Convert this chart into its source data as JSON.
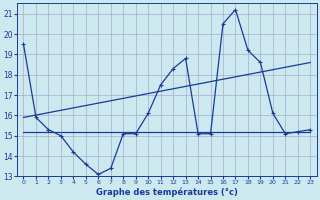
{
  "title": "Graphe des températures (°c)",
  "background_color": "#cce9f0",
  "grid_color": "#aaaacc",
  "line_color": "#1a3a9a",
  "ylim": [
    13,
    21.5
  ],
  "xlim": [
    -0.5,
    23.5
  ],
  "yticks": [
    13,
    14,
    15,
    16,
    17,
    18,
    19,
    20,
    21
  ],
  "xticks": [
    0,
    1,
    2,
    3,
    4,
    5,
    6,
    7,
    8,
    9,
    10,
    11,
    12,
    13,
    14,
    15,
    16,
    17,
    18,
    19,
    20,
    21,
    22,
    23
  ],
  "series1_x": [
    0,
    1,
    2,
    3,
    4,
    5,
    6,
    7,
    8,
    9,
    10,
    11,
    12,
    13,
    14,
    15,
    16,
    17,
    18,
    19,
    20,
    21,
    22,
    23
  ],
  "series1_y": [
    19.5,
    15.9,
    15.3,
    15.0,
    14.2,
    13.6,
    13.1,
    13.4,
    15.1,
    15.1,
    16.1,
    17.5,
    18.3,
    18.8,
    15.1,
    15.1,
    20.5,
    21.2,
    19.2,
    18.6,
    16.1,
    15.1,
    15.2,
    15.3
  ],
  "series2_x": [
    0,
    23
  ],
  "series2_y": [
    15.2,
    15.2
  ],
  "series3_x": [
    0,
    23
  ],
  "series3_y": [
    15.9,
    18.6
  ]
}
